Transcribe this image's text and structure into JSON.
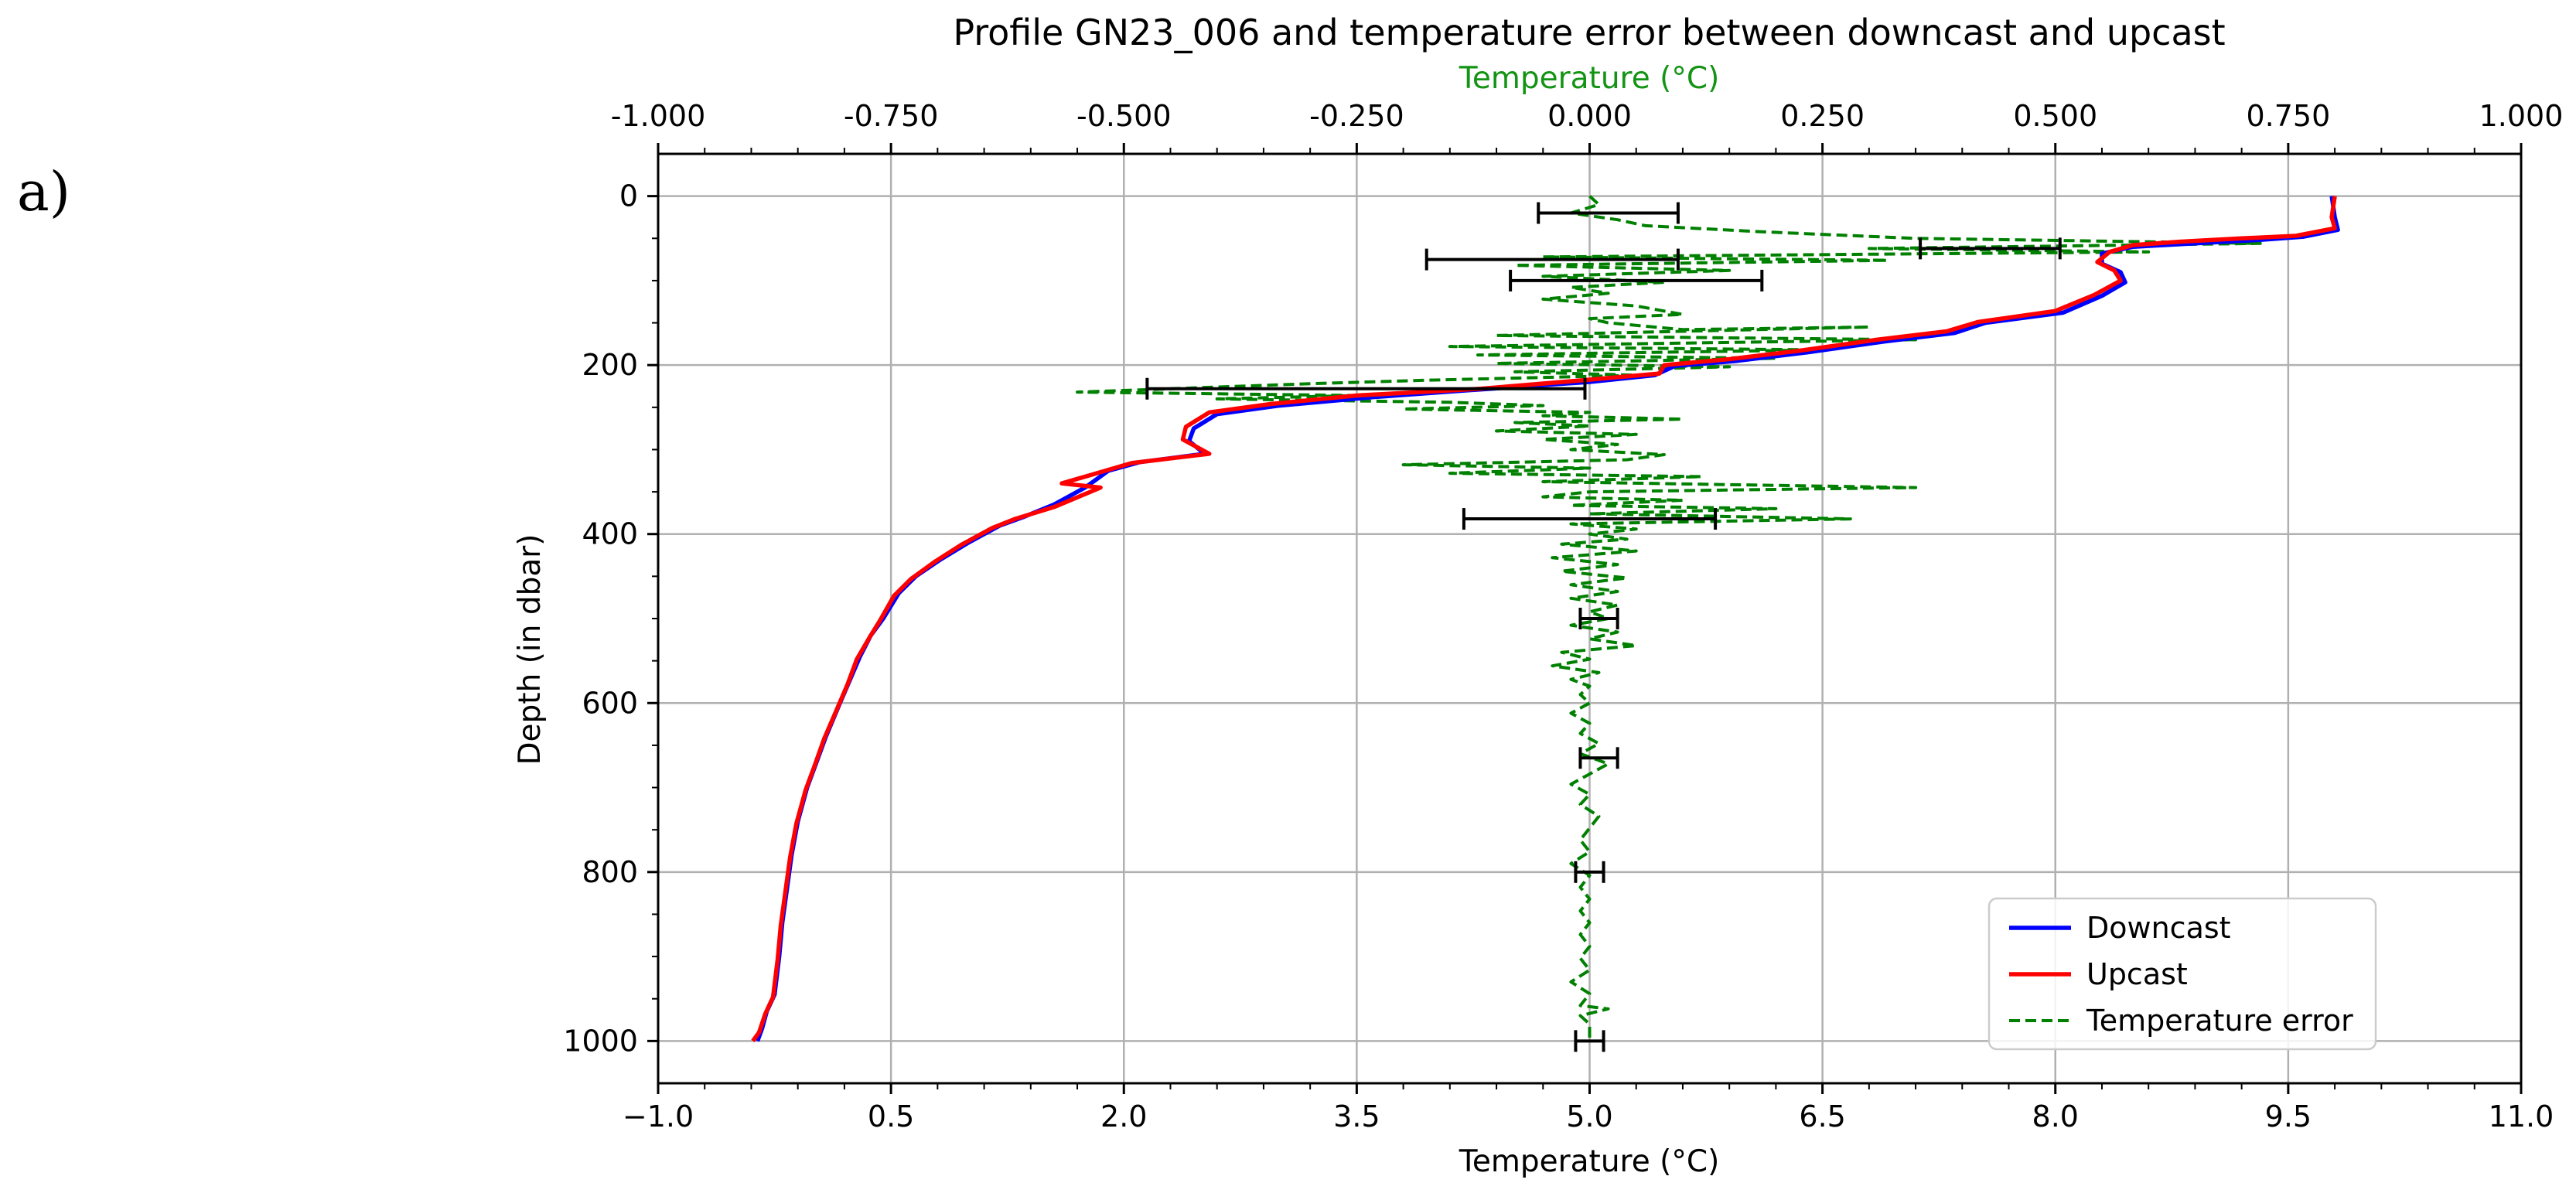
{
  "panel_label": "a)",
  "chart_data": {
    "type": "line",
    "title": "Profile GN23_006 and temperature error between downcast and upcast",
    "xlabel": "Temperature (°C)",
    "xlabel_top": "Temperature (°C)",
    "ylabel": "Depth (in dbar)",
    "xlim": [
      -1.0,
      11.0
    ],
    "xlim_top": [
      -1.0,
      1.0
    ],
    "ylim": [
      1050,
      -50
    ],
    "y_inverted": true,
    "grid": true,
    "legend_position": "lower right",
    "x_ticks": [
      "−1.0",
      "0.5",
      "2.0",
      "3.5",
      "5.0",
      "6.5",
      "8.0",
      "9.5",
      "11.0"
    ],
    "x_tick_values": [
      -1.0,
      0.5,
      2.0,
      3.5,
      5.0,
      6.5,
      8.0,
      9.5,
      11.0
    ],
    "x_top_ticks": [
      "-1.000",
      "-0.750",
      "-0.500",
      "-0.250",
      "0.000",
      "0.250",
      "0.500",
      "0.750",
      "1.000"
    ],
    "x_top_tick_values": [
      -1.0,
      -0.75,
      -0.5,
      -0.25,
      0.0,
      0.25,
      0.5,
      0.75,
      1.0
    ],
    "y_ticks": [
      "0",
      "200",
      "400",
      "600",
      "800",
      "1000"
    ],
    "y_tick_values": [
      0,
      200,
      400,
      600,
      800,
      1000
    ],
    "colors": {
      "downcast": "#0000ff",
      "upcast": "#ff0000",
      "error": "#008000",
      "errorbar": "#000000",
      "top_axis_label": "#149414"
    },
    "series": [
      {
        "name": "Downcast",
        "axis": "bottom",
        "style": "solid",
        "points": [
          [
            9.78,
            0
          ],
          [
            9.8,
            25
          ],
          [
            9.82,
            40
          ],
          [
            9.6,
            48
          ],
          [
            9.3,
            52
          ],
          [
            8.9,
            56
          ],
          [
            8.5,
            60
          ],
          [
            8.3,
            68
          ],
          [
            8.3,
            80
          ],
          [
            8.42,
            90
          ],
          [
            8.45,
            102
          ],
          [
            8.3,
            118
          ],
          [
            8.05,
            138
          ],
          [
            7.55,
            150
          ],
          [
            7.35,
            162
          ],
          [
            6.9,
            172
          ],
          [
            6.4,
            185
          ],
          [
            5.95,
            195
          ],
          [
            5.55,
            201
          ],
          [
            5.42,
            212
          ],
          [
            5.0,
            220
          ],
          [
            4.2,
            230
          ],
          [
            3.6,
            238
          ],
          [
            3.0,
            248
          ],
          [
            2.6,
            258
          ],
          [
            2.45,
            275
          ],
          [
            2.42,
            290
          ],
          [
            2.52,
            305
          ],
          [
            2.1,
            315
          ],
          [
            1.9,
            325
          ],
          [
            1.75,
            345
          ],
          [
            1.55,
            365
          ],
          [
            1.35,
            380
          ],
          [
            1.2,
            390
          ],
          [
            1.0,
            410
          ],
          [
            0.82,
            430
          ],
          [
            0.66,
            450
          ],
          [
            0.55,
            470
          ],
          [
            0.45,
            500
          ],
          [
            0.37,
            520
          ],
          [
            0.3,
            545
          ],
          [
            0.23,
            575
          ],
          [
            0.16,
            605
          ],
          [
            0.08,
            640
          ],
          [
            0.02,
            670
          ],
          [
            -0.04,
            700
          ],
          [
            -0.1,
            740
          ],
          [
            -0.14,
            780
          ],
          [
            -0.17,
            820
          ],
          [
            -0.2,
            860
          ],
          [
            -0.22,
            900
          ],
          [
            -0.25,
            945
          ],
          [
            -0.3,
            965
          ],
          [
            -0.33,
            985
          ],
          [
            -0.36,
            1000
          ]
        ]
      },
      {
        "name": "Upcast",
        "axis": "bottom",
        "style": "solid",
        "points": [
          [
            9.8,
            0
          ],
          [
            9.78,
            25
          ],
          [
            9.8,
            38
          ],
          [
            9.55,
            47
          ],
          [
            9.2,
            50
          ],
          [
            8.8,
            54
          ],
          [
            8.5,
            58
          ],
          [
            8.35,
            66
          ],
          [
            8.27,
            78
          ],
          [
            8.38,
            88
          ],
          [
            8.42,
            100
          ],
          [
            8.25,
            117
          ],
          [
            8.0,
            136
          ],
          [
            7.5,
            149
          ],
          [
            7.3,
            160
          ],
          [
            6.85,
            170
          ],
          [
            6.35,
            183
          ],
          [
            5.9,
            193
          ],
          [
            5.48,
            200
          ],
          [
            5.45,
            210
          ],
          [
            4.95,
            218
          ],
          [
            4.3,
            228
          ],
          [
            3.5,
            236
          ],
          [
            2.95,
            246
          ],
          [
            2.55,
            256
          ],
          [
            2.4,
            273
          ],
          [
            2.38,
            288
          ],
          [
            2.55,
            305
          ],
          [
            2.05,
            316
          ],
          [
            1.6,
            340
          ],
          [
            1.85,
            345
          ],
          [
            1.55,
            368
          ],
          [
            1.3,
            382
          ],
          [
            1.15,
            393
          ],
          [
            0.95,
            413
          ],
          [
            0.78,
            433
          ],
          [
            0.63,
            453
          ],
          [
            0.52,
            473
          ],
          [
            0.43,
            502
          ],
          [
            0.36,
            523
          ],
          [
            0.28,
            548
          ],
          [
            0.22,
            578
          ],
          [
            0.15,
            608
          ],
          [
            0.07,
            642
          ],
          [
            0.01,
            673
          ],
          [
            -0.05,
            703
          ],
          [
            -0.11,
            743
          ],
          [
            -0.15,
            783
          ],
          [
            -0.18,
            823
          ],
          [
            -0.21,
            863
          ],
          [
            -0.23,
            903
          ],
          [
            -0.26,
            948
          ],
          [
            -0.31,
            968
          ],
          [
            -0.35,
            990
          ],
          [
            -0.39,
            1000
          ]
        ]
      },
      {
        "name": "Temperature error",
        "axis": "top",
        "style": "dashed",
        "points": [
          [
            0.0,
            0
          ],
          [
            0.01,
            10
          ],
          [
            -0.02,
            20
          ],
          [
            0.03,
            28
          ],
          [
            0.06,
            35
          ],
          [
            0.18,
            42
          ],
          [
            0.35,
            50
          ],
          [
            0.72,
            56
          ],
          [
            0.3,
            62
          ],
          [
            0.6,
            66
          ],
          [
            -0.05,
            72
          ],
          [
            0.32,
            76
          ],
          [
            -0.08,
            82
          ],
          [
            0.15,
            88
          ],
          [
            -0.05,
            95
          ],
          [
            0.08,
            102
          ],
          [
            -0.02,
            108
          ],
          [
            0.02,
            115
          ],
          [
            -0.05,
            122
          ],
          [
            0.05,
            130
          ],
          [
            0.1,
            140
          ],
          [
            0.0,
            145
          ],
          [
            0.02,
            150
          ],
          [
            0.1,
            158
          ],
          [
            0.3,
            155
          ],
          [
            -0.1,
            165
          ],
          [
            0.35,
            170
          ],
          [
            -0.15,
            178
          ],
          [
            0.25,
            182
          ],
          [
            -0.12,
            188
          ],
          [
            0.2,
            192
          ],
          [
            -0.1,
            198
          ],
          [
            0.15,
            202
          ],
          [
            -0.08,
            208
          ],
          [
            0.05,
            212
          ],
          [
            -0.18,
            218
          ],
          [
            -0.3,
            222
          ],
          [
            -0.45,
            228
          ],
          [
            -0.55,
            232
          ],
          [
            -0.25,
            236
          ],
          [
            -0.4,
            240
          ],
          [
            -0.15,
            244
          ],
          [
            -0.05,
            248
          ],
          [
            -0.2,
            252
          ],
          [
            0.0,
            256
          ],
          [
            -0.05,
            260
          ],
          [
            0.1,
            264
          ],
          [
            -0.08,
            268
          ],
          [
            0.0,
            272
          ],
          [
            -0.1,
            278
          ],
          [
            0.05,
            282
          ],
          [
            -0.05,
            288
          ],
          [
            0.03,
            294
          ],
          [
            -0.02,
            300
          ],
          [
            0.08,
            306
          ],
          [
            0.04,
            312
          ],
          [
            -0.2,
            318
          ],
          [
            0.0,
            322
          ],
          [
            -0.15,
            328
          ],
          [
            0.12,
            332
          ],
          [
            -0.05,
            338
          ],
          [
            0.35,
            345
          ],
          [
            0.0,
            350
          ],
          [
            -0.05,
            356
          ],
          [
            0.1,
            360
          ],
          [
            -0.02,
            366
          ],
          [
            0.2,
            370
          ],
          [
            0.0,
            376
          ],
          [
            0.28,
            382
          ],
          [
            -0.02,
            388
          ],
          [
            0.05,
            394
          ],
          [
            0.0,
            400
          ],
          [
            0.04,
            406
          ],
          [
            -0.03,
            412
          ],
          [
            0.05,
            420
          ],
          [
            -0.04,
            428
          ],
          [
            0.03,
            436
          ],
          [
            -0.03,
            444
          ],
          [
            0.04,
            452
          ],
          [
            -0.02,
            460
          ],
          [
            0.03,
            468
          ],
          [
            -0.02,
            476
          ],
          [
            0.03,
            484
          ],
          [
            0.0,
            492
          ],
          [
            0.02,
            500
          ],
          [
            -0.02,
            508
          ],
          [
            0.03,
            516
          ],
          [
            0.0,
            524
          ],
          [
            0.05,
            532
          ],
          [
            -0.03,
            540
          ],
          [
            0.0,
            548
          ],
          [
            -0.04,
            556
          ],
          [
            0.01,
            564
          ],
          [
            -0.02,
            572
          ],
          [
            0.0,
            580
          ],
          [
            -0.01,
            590
          ],
          [
            0.0,
            600
          ],
          [
            -0.02,
            612
          ],
          [
            0.0,
            624
          ],
          [
            -0.01,
            636
          ],
          [
            0.01,
            648
          ],
          [
            -0.01,
            660
          ],
          [
            0.02,
            672
          ],
          [
            0.0,
            684
          ],
          [
            -0.02,
            696
          ],
          [
            0.0,
            708
          ],
          [
            -0.01,
            720
          ],
          [
            0.01,
            734
          ],
          [
            0.0,
            748
          ],
          [
            -0.01,
            762
          ],
          [
            0.0,
            776
          ],
          [
            -0.02,
            790
          ],
          [
            0.0,
            804
          ],
          [
            -0.01,
            818
          ],
          [
            0.0,
            832
          ],
          [
            -0.01,
            846
          ],
          [
            0.0,
            860
          ],
          [
            -0.01,
            874
          ],
          [
            0.0,
            888
          ],
          [
            -0.01,
            902
          ],
          [
            0.0,
            916
          ],
          [
            -0.02,
            930
          ],
          [
            0.0,
            944
          ],
          [
            -0.01,
            958
          ],
          [
            0.02,
            962
          ],
          [
            -0.01,
            970
          ],
          [
            0.0,
            980
          ],
          [
            0.0,
            990
          ],
          [
            0.0,
            1000
          ]
        ]
      }
    ],
    "error_bars": [
      {
        "center": 0.02,
        "depth": 20,
        "halfwidth": 0.075
      },
      {
        "center": 0.43,
        "depth": 62,
        "halfwidth": 0.075
      },
      {
        "center": -0.04,
        "depth": 75,
        "halfwidth": 0.135
      },
      {
        "center": 0.05,
        "depth": 100,
        "halfwidth": 0.135
      },
      {
        "center": -0.24,
        "depth": 228,
        "halfwidth": 0.235
      },
      {
        "center": 0.0,
        "depth": 382,
        "halfwidth": 0.135
      },
      {
        "center": 0.01,
        "depth": 500,
        "halfwidth": 0.02
      },
      {
        "center": 0.01,
        "depth": 665,
        "halfwidth": 0.02
      },
      {
        "center": 0.0,
        "depth": 800,
        "halfwidth": 0.015
      },
      {
        "center": 0.0,
        "depth": 1000,
        "halfwidth": 0.015
      }
    ],
    "legend": [
      "Downcast",
      "Upcast",
      "Temperature error"
    ]
  }
}
